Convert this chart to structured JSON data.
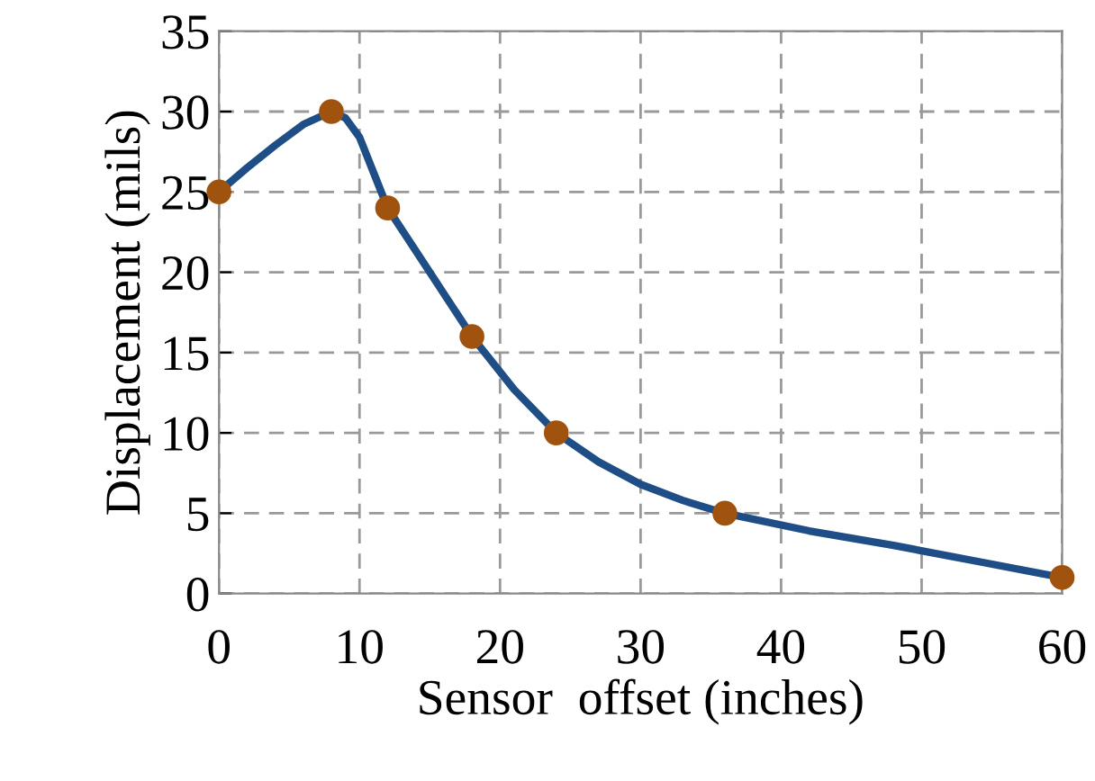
{
  "chart_data": {
    "type": "line",
    "xlabel": "Sensor  offset (inches)",
    "ylabel": "Displacement (mils)",
    "x": [
      0,
      8,
      12,
      18,
      24,
      36,
      60
    ],
    "series": [
      {
        "color": "#1f4e86",
        "x": [
          0,
          2,
          4,
          6,
          8,
          9,
          10,
          11,
          12,
          15,
          18,
          21,
          24,
          27,
          30,
          33,
          36,
          42,
          48,
          54,
          60
        ],
        "values": [
          25,
          26.5,
          27.9,
          29.2,
          30,
          29.6,
          28.4,
          26.2,
          24,
          20,
          16,
          12.7,
          10,
          8.2,
          6.8,
          5.8,
          5,
          3.9,
          3,
          2,
          1
        ],
        "line_style": "solid",
        "marker": "none"
      },
      {
        "type": "scatter",
        "color": "#a0520f",
        "values": [
          25,
          30,
          24,
          16,
          10,
          5,
          1
        ],
        "marker": "circle"
      }
    ],
    "xlim": [
      0,
      60
    ],
    "xticks": [
      0,
      10,
      20,
      30,
      40,
      50,
      60
    ],
    "ylim": [
      0,
      35
    ],
    "yticks": [
      0,
      5,
      10,
      15,
      20,
      25,
      30,
      35
    ],
    "grid": true
  }
}
